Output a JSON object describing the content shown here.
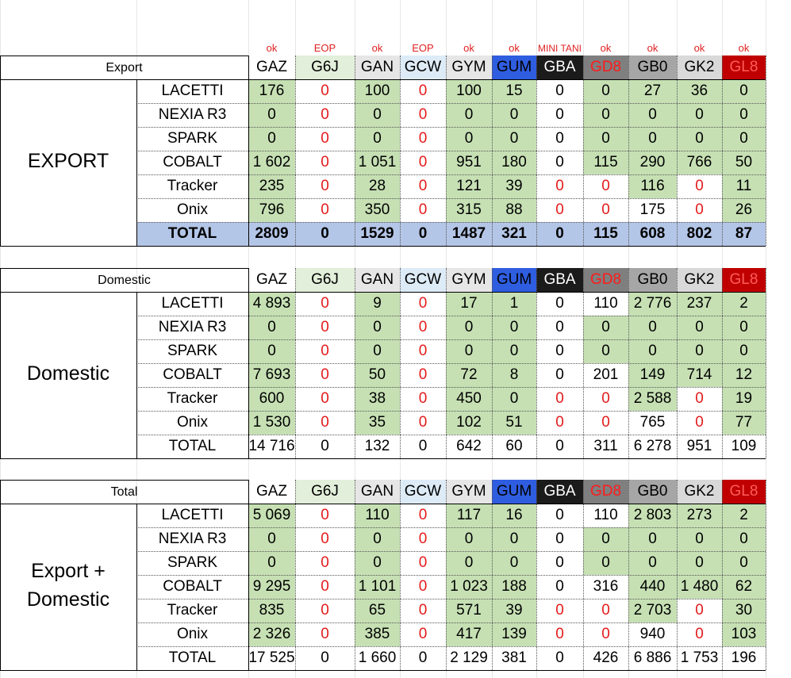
{
  "status_row": [
    "ok",
    "EOP",
    "ok",
    "EOP",
    "ok",
    "ok",
    "MINI TANI",
    "ok",
    "ok",
    "ok",
    "ok"
  ],
  "columns": [
    {
      "code": "GAZ",
      "bg": "#ffffff",
      "fg": "#000000"
    },
    {
      "code": "G6J",
      "bg": "#e2efda",
      "fg": "#000000"
    },
    {
      "code": "GAN",
      "bg": "#e7e6e6",
      "fg": "#000000"
    },
    {
      "code": "GCW",
      "bg": "#ddebf7",
      "fg": "#000000"
    },
    {
      "code": "GYM",
      "bg": "#e7e6e6",
      "fg": "#000000"
    },
    {
      "code": "GUM",
      "bg": "#2f5de0",
      "fg": "#000000"
    },
    {
      "code": "GBA",
      "bg": "#1b1b1b",
      "fg": "#ffffff"
    },
    {
      "code": "GD8",
      "bg": "#7f7f7f",
      "fg": "#ff1a1a"
    },
    {
      "code": "GB0",
      "bg": "#a6a6a6",
      "fg": "#000000"
    },
    {
      "code": "GK2",
      "bg": "#d9d9d9",
      "fg": "#000000"
    },
    {
      "code": "GL8",
      "bg": "#c00000",
      "fg": "#ff5c5c"
    }
  ],
  "colors": {
    "green": "#c6e0b4",
    "total_blue": "#b4c6e7",
    "zero_red": "#e31b1b"
  },
  "sections": [
    {
      "header": "Export",
      "group_label": [
        "EXPORT"
      ],
      "group_bold": true,
      "total_style": "highlight",
      "rows": [
        {
          "model": "LACETTI",
          "values": [
            "176",
            "0",
            "100",
            "0",
            "100",
            "15",
            "0",
            "0",
            "27",
            "36",
            "0"
          ]
        },
        {
          "model": "NEXIA R3",
          "values": [
            "0",
            "0",
            "0",
            "0",
            "0",
            "0",
            "0",
            "0",
            "0",
            "0",
            "0"
          ]
        },
        {
          "model": "SPARK",
          "values": [
            "0",
            "0",
            "0",
            "0",
            "0",
            "0",
            "0",
            "0",
            "0",
            "0",
            "0"
          ]
        },
        {
          "model": "COBALT",
          "values": [
            "1 602",
            "0",
            "1 051",
            "0",
            "951",
            "180",
            "0",
            "115",
            "290",
            "766",
            "50"
          ]
        },
        {
          "model": "Tracker",
          "values": [
            "235",
            "0",
            "28",
            "0",
            "121",
            "39",
            "0",
            "0",
            "116",
            "0",
            "11"
          ]
        },
        {
          "model": "Onix",
          "values": [
            "796",
            "0",
            "350",
            "0",
            "315",
            "88",
            "0",
            "0",
            "175",
            "0",
            "26"
          ]
        },
        {
          "model": "TOTAL",
          "values": [
            "2809",
            "0",
            "1529",
            "0",
            "1487",
            "321",
            "0",
            "115",
            "608",
            "802",
            "87"
          ]
        }
      ]
    },
    {
      "header": "Domestic",
      "group_label": [
        "Domestic"
      ],
      "group_bold": false,
      "total_style": "plain",
      "rows": [
        {
          "model": "LACETTI",
          "values": [
            "4 893",
            "0",
            "9",
            "0",
            "17",
            "1",
            "0",
            "110",
            "2 776",
            "237",
            "2"
          ]
        },
        {
          "model": "NEXIA R3",
          "values": [
            "0",
            "0",
            "0",
            "0",
            "0",
            "0",
            "0",
            "0",
            "0",
            "0",
            "0"
          ]
        },
        {
          "model": "SPARK",
          "values": [
            "0",
            "0",
            "0",
            "0",
            "0",
            "0",
            "0",
            "0",
            "0",
            "0",
            "0"
          ]
        },
        {
          "model": "COBALT",
          "values": [
            "7 693",
            "0",
            "50",
            "0",
            "72",
            "8",
            "0",
            "201",
            "149",
            "714",
            "12"
          ]
        },
        {
          "model": "Tracker",
          "values": [
            "600",
            "0",
            "38",
            "0",
            "450",
            "0",
            "0",
            "0",
            "2 588",
            "0",
            "19"
          ]
        },
        {
          "model": "Onix",
          "values": [
            "1 530",
            "0",
            "35",
            "0",
            "102",
            "51",
            "0",
            "0",
            "765",
            "0",
            "77"
          ]
        },
        {
          "model": "TOTAL",
          "values": [
            "14 716",
            "0",
            "132",
            "0",
            "642",
            "60",
            "0",
            "311",
            "6 278",
            "951",
            "109"
          ]
        }
      ]
    },
    {
      "header": "Total",
      "group_label": [
        "Export +",
        "Domestic"
      ],
      "group_bold": false,
      "total_style": "plain",
      "rows": [
        {
          "model": "LACETTI",
          "values": [
            "5 069",
            "0",
            "110",
            "0",
            "117",
            "16",
            "0",
            "110",
            "2 803",
            "273",
            "2"
          ]
        },
        {
          "model": "NEXIA R3",
          "values": [
            "0",
            "0",
            "0",
            "0",
            "0",
            "0",
            "0",
            "0",
            "0",
            "0",
            "0"
          ]
        },
        {
          "model": "SPARK",
          "values": [
            "0",
            "0",
            "0",
            "0",
            "0",
            "0",
            "0",
            "0",
            "0",
            "0",
            "0"
          ]
        },
        {
          "model": "COBALT",
          "values": [
            "9 295",
            "0",
            "1 101",
            "0",
            "1 023",
            "188",
            "0",
            "316",
            "440",
            "1 480",
            "62"
          ]
        },
        {
          "model": "Tracker",
          "values": [
            "835",
            "0",
            "65",
            "0",
            "571",
            "39",
            "0",
            "0",
            "2 703",
            "0",
            "30"
          ]
        },
        {
          "model": "Onix",
          "values": [
            "2 326",
            "0",
            "385",
            "0",
            "417",
            "139",
            "0",
            "0",
            "940",
            "0",
            "103"
          ]
        },
        {
          "model": "TOTAL",
          "values": [
            "17 525",
            "0",
            "1 660",
            "0",
            "2 129",
            "381",
            "0",
            "426",
            "6 886",
            "1 753",
            "196"
          ]
        }
      ]
    }
  ]
}
